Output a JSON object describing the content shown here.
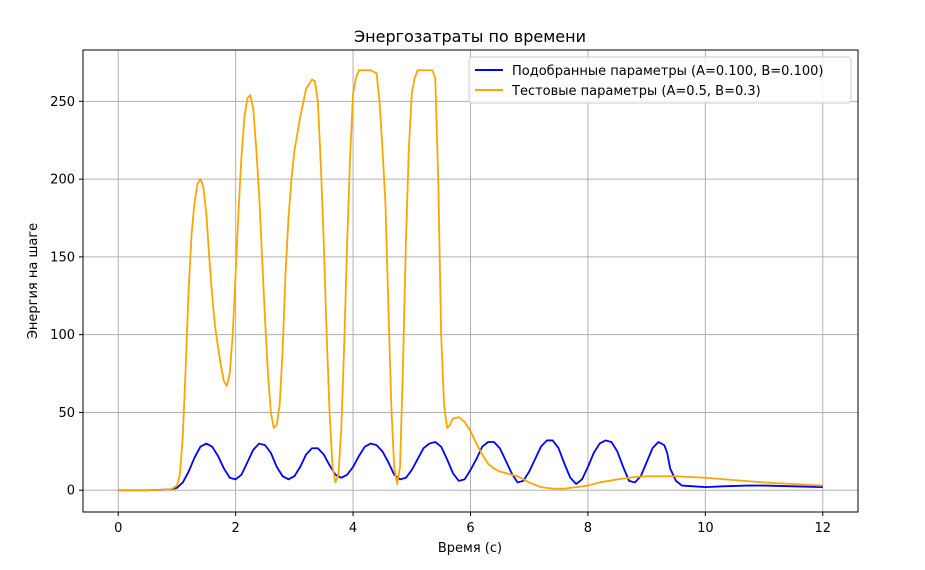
{
  "chart_data": {
    "type": "line",
    "title": "Энергозатраты по времени",
    "xlabel": "Время (с)",
    "ylabel": "Энергия на шаге",
    "xlim": [
      -0.6,
      12.6
    ],
    "ylim": [
      -14,
      283
    ],
    "xticks": [
      0,
      2,
      4,
      6,
      8,
      10,
      12
    ],
    "yticks": [
      0,
      50,
      100,
      150,
      200,
      250
    ],
    "grid": true,
    "legend_position": "top-right",
    "series": [
      {
        "name": "Подобранные параметры (A=0.100, B=0.100)",
        "color": "#0000ff",
        "x": [
          0,
          0.5,
          0.9,
          1.0,
          1.1,
          1.2,
          1.3,
          1.4,
          1.5,
          1.6,
          1.7,
          1.8,
          1.9,
          2.0,
          2.1,
          2.2,
          2.3,
          2.4,
          2.5,
          2.6,
          2.7,
          2.8,
          2.9,
          3.0,
          3.1,
          3.2,
          3.3,
          3.4,
          3.5,
          3.6,
          3.7,
          3.8,
          3.9,
          4.0,
          4.1,
          4.2,
          4.3,
          4.4,
          4.5,
          4.6,
          4.7,
          4.8,
          4.9,
          5.0,
          5.1,
          5.2,
          5.3,
          5.4,
          5.5,
          5.6,
          5.7,
          5.8,
          5.9,
          6.0,
          6.1,
          6.2,
          6.3,
          6.4,
          6.5,
          6.6,
          6.7,
          6.8,
          6.9,
          7.0,
          7.1,
          7.2,
          7.3,
          7.4,
          7.5,
          7.6,
          7.7,
          7.8,
          7.9,
          8.0,
          8.1,
          8.2,
          8.3,
          8.4,
          8.5,
          8.6,
          8.7,
          8.8,
          8.9,
          9.0,
          9.1,
          9.2,
          9.3,
          9.35,
          9.4,
          9.5,
          9.6,
          9.8,
          10.0,
          10.3,
          10.7,
          11.0,
          11.5,
          12.0
        ],
        "values": [
          0,
          0,
          0.5,
          1.5,
          5,
          12,
          21,
          28,
          30,
          28,
          22,
          14,
          8,
          7,
          10,
          18,
          26,
          30,
          29,
          24,
          15,
          9,
          7,
          9,
          15,
          23,
          27,
          27,
          23,
          16,
          10,
          8,
          10,
          15,
          22,
          28,
          30,
          29,
          25,
          18,
          10,
          7,
          8,
          13,
          20,
          27,
          30,
          31,
          28,
          20,
          11,
          6,
          7,
          13,
          20,
          28,
          31,
          31,
          27,
          19,
          11,
          5,
          6,
          12,
          20,
          28,
          32,
          32,
          27,
          17,
          8,
          4,
          7,
          15,
          24,
          30,
          32,
          31,
          25,
          15,
          6,
          5,
          9,
          18,
          27,
          31,
          29,
          24,
          14,
          6,
          3,
          2.5,
          2,
          2.5,
          3,
          3,
          2.5,
          2
        ]
      },
      {
        "name": "Тестовые параметры (A=0.5, B=0.3)",
        "color": "#ffa500",
        "x": [
          0,
          0.5,
          0.9,
          1.0,
          1.05,
          1.1,
          1.15,
          1.2,
          1.25,
          1.3,
          1.35,
          1.4,
          1.45,
          1.5,
          1.55,
          1.6,
          1.65,
          1.7,
          1.75,
          1.8,
          1.85,
          1.9,
          1.95,
          2.0,
          2.05,
          2.1,
          2.15,
          2.2,
          2.25,
          2.3,
          2.35,
          2.4,
          2.45,
          2.5,
          2.55,
          2.6,
          2.65,
          2.7,
          2.75,
          2.8,
          2.85,
          2.9,
          2.95,
          3.0,
          3.1,
          3.2,
          3.3,
          3.35,
          3.4,
          3.45,
          3.5,
          3.55,
          3.6,
          3.65,
          3.7,
          3.75,
          3.8,
          3.85,
          3.9,
          3.95,
          4.0,
          4.05,
          4.1,
          4.15,
          4.2,
          4.3,
          4.4,
          4.45,
          4.5,
          4.55,
          4.6,
          4.65,
          4.7,
          4.75,
          4.8,
          4.85,
          4.9,
          4.95,
          5.0,
          5.05,
          5.1,
          5.2,
          5.3,
          5.35,
          5.4,
          5.45,
          5.5,
          5.55,
          5.6,
          5.65,
          5.7,
          5.8,
          5.9,
          6.0,
          6.1,
          6.2,
          6.3,
          6.4,
          6.5,
          6.6,
          6.8,
          7.0,
          7.2,
          7.4,
          7.6,
          7.8,
          8.0,
          8.2,
          8.5,
          8.8,
          9.0,
          9.5,
          10.0,
          10.5,
          11.0,
          11.5,
          12.0
        ],
        "values": [
          0,
          0,
          0.5,
          3,
          10,
          35,
          80,
          130,
          165,
          185,
          197,
          200,
          195,
          178,
          150,
          125,
          105,
          92,
          80,
          70,
          67,
          75,
          100,
          140,
          180,
          215,
          240,
          252,
          254,
          245,
          220,
          190,
          150,
          110,
          75,
          50,
          40,
          42,
          55,
          90,
          140,
          175,
          200,
          218,
          240,
          258,
          264,
          263,
          250,
          210,
          160,
          100,
          50,
          15,
          5,
          10,
          40,
          95,
          160,
          215,
          255,
          265,
          270,
          270,
          270,
          270,
          268,
          250,
          220,
          185,
          120,
          55,
          15,
          4,
          15,
          80,
          160,
          220,
          255,
          265,
          270,
          270,
          270,
          270,
          265,
          200,
          100,
          55,
          40,
          42,
          46,
          47,
          44,
          38,
          30,
          23,
          17,
          14,
          12,
          11,
          9,
          5,
          2,
          1,
          1,
          2,
          3,
          5,
          7,
          8.5,
          9,
          9,
          8,
          6.5,
          5,
          4,
          3
        ]
      }
    ]
  }
}
